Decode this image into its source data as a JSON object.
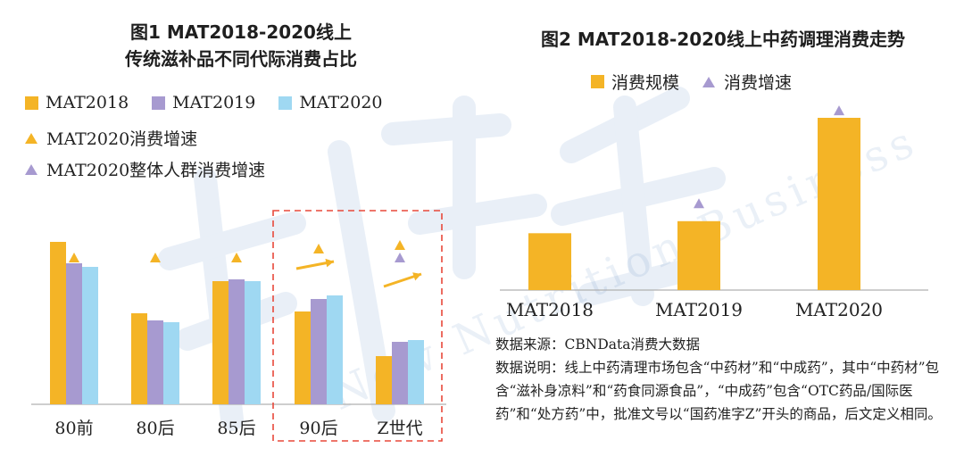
{
  "left": {
    "title_line1": "图1 MAT2018-2020线上",
    "title_line2": "传统滋补品不同代际消费占比",
    "legend": {
      "mat2018": "MAT2018",
      "mat2019": "MAT2019",
      "mat2020": "MAT2020",
      "growth": "MAT2020消费增速",
      "overall_growth": "MAT2020整体人群消费增速"
    }
  },
  "right": {
    "title": "图2 MAT2018-2020线上中药调理消费走势",
    "legend": {
      "scale": "消费规模",
      "growth": "消费增速"
    }
  },
  "source": {
    "line1": "数据来源：CBNData消费大数据",
    "line2": "数据说明：线上中药清理市场包含“中药材”和“中成药”，其中“中药材”包含“滋补身凉料”和“药食同源食品”，“中成药”包含“OTC药品/国际医药”和“处方药”中，批准文号以“国药准字Z”开头的商品，后文定义相同。"
  },
  "colors": {
    "mat2018": "#f4b426",
    "mat2019": "#a79ad0",
    "mat2020": "#9fd8f2",
    "growth": "#f4b426",
    "overall_growth": "#a79ad0",
    "highlight_box": "#e8483a",
    "arrow": "#f4b426"
  },
  "chart_data": [
    {
      "type": "bar",
      "title": "图1 MAT2018-2020线上 传统滋补品不同代际消费占比",
      "categories": [
        "80前",
        "80后",
        "85后",
        "90后",
        "Z世代"
      ],
      "series": [
        {
          "name": "MAT2018",
          "values": [
            0.91,
            0.51,
            0.69,
            0.52,
            0.27
          ]
        },
        {
          "name": "MAT2019",
          "values": [
            0.79,
            0.47,
            0.7,
            0.59,
            0.35
          ]
        },
        {
          "name": "MAT2020",
          "values": [
            0.77,
            0.46,
            0.69,
            0.61,
            0.36
          ]
        }
      ],
      "markers": [
        {
          "name": "MAT2020消费增速",
          "values": [
            0.82,
            0.82,
            0.82,
            0.87,
            0.89
          ]
        },
        {
          "name": "MAT2020整体人群消费增速",
          "values": [
            null,
            null,
            null,
            null,
            0.82
          ]
        }
      ],
      "ylim": [
        0,
        1
      ],
      "axis_labels_shown": false,
      "highlighted_categories": [
        "90后",
        "Z世代"
      ],
      "legend_position": "top-left"
    },
    {
      "type": "bar",
      "title": "图2 MAT2018-2020线上中药调理消费走势",
      "categories": [
        "MAT2018",
        "MAT2019",
        "MAT2020"
      ],
      "series": [
        {
          "name": "消费规模",
          "values": [
            0.33,
            0.4,
            1.0
          ]
        }
      ],
      "markers": [
        {
          "name": "消费增速",
          "values": [
            null,
            0.47,
            1.01
          ]
        }
      ],
      "ylim": [
        0,
        1.05
      ],
      "axis_labels_shown": false,
      "legend_position": "top-center"
    }
  ]
}
